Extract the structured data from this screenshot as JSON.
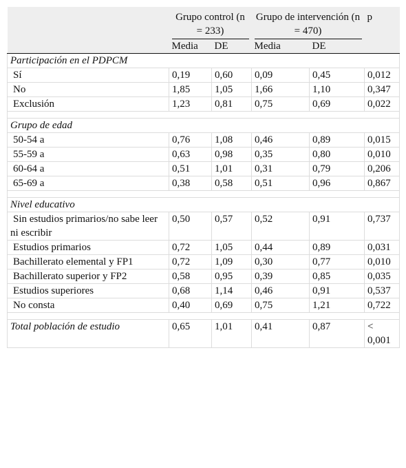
{
  "header": {
    "control_group": "Grupo control (n = 233)",
    "intervention_group": "Grupo de intervención (n = 470)",
    "p_label": "p",
    "media": "Media",
    "de": "DE"
  },
  "sections": [
    {
      "title": "Participación en el PDPCM",
      "rows": [
        {
          "label": "Sí",
          "c_media": "0,19",
          "c_de": "0,60",
          "i_media": "0,09",
          "i_de": "0,45",
          "p": "0,012"
        },
        {
          "label": "No",
          "c_media": "1,85",
          "c_de": "1,05",
          "i_media": "1,66",
          "i_de": "1,10",
          "p": "0,347"
        },
        {
          "label": "Exclusión",
          "c_media": "1,23",
          "c_de": "0,81",
          "i_media": "0,75",
          "i_de": "0,69",
          "p": "0,022"
        }
      ]
    },
    {
      "title": "Grupo de edad",
      "rows": [
        {
          "label": "50-54 a",
          "c_media": "0,76",
          "c_de": "1,08",
          "i_media": "0,46",
          "i_de": "0,89",
          "p": "0,015"
        },
        {
          "label": "55-59 a",
          "c_media": "0,63",
          "c_de": "0,98",
          "i_media": "0,35",
          "i_de": "0,80",
          "p": "0,010"
        },
        {
          "label": "60-64 a",
          "c_media": "0,51",
          "c_de": "1,01",
          "i_media": "0,31",
          "i_de": "0,79",
          "p": "0,206"
        },
        {
          "label": "65-69 a",
          "c_media": "0,38",
          "c_de": "0,58",
          "i_media": "0,51",
          "i_de": "0,96",
          "p": "0,867"
        }
      ]
    },
    {
      "title": "Nivel educativo",
      "rows": [
        {
          "label": "Sin estudios primarios/no sabe leer ni escribir",
          "c_media": "0,50",
          "c_de": "0,57",
          "i_media": "0,52",
          "i_de": "0,91",
          "p": "0,737"
        },
        {
          "label": "Estudios primarios",
          "c_media": "0,72",
          "c_de": "1,05",
          "i_media": "0,44",
          "i_de": "0,89",
          "p": "0,031"
        },
        {
          "label": "Bachillerato elemental y FP1",
          "c_media": "0,72",
          "c_de": "1,09",
          "i_media": "0,30",
          "i_de": "0,77",
          "p": "0,010"
        },
        {
          "label": "Bachillerato superior y FP2",
          "c_media": "0,58",
          "c_de": "0,95",
          "i_media": "0,39",
          "i_de": "0,85",
          "p": "0,035"
        },
        {
          "label": "Estudios superiores",
          "c_media": "0,68",
          "c_de": "1,14",
          "i_media": "0,46",
          "i_de": "0,91",
          "p": "0,537"
        },
        {
          "label": "No consta",
          "c_media": "0,40",
          "c_de": "0,69",
          "i_media": "0,75",
          "i_de": "1,21",
          "p": "0,722"
        }
      ]
    }
  ],
  "total": {
    "label": "Total población de estudio",
    "c_media": "0,65",
    "c_de": "1,01",
    "i_media": "0,41",
    "i_de": "0,87",
    "p": "< 0,001"
  }
}
